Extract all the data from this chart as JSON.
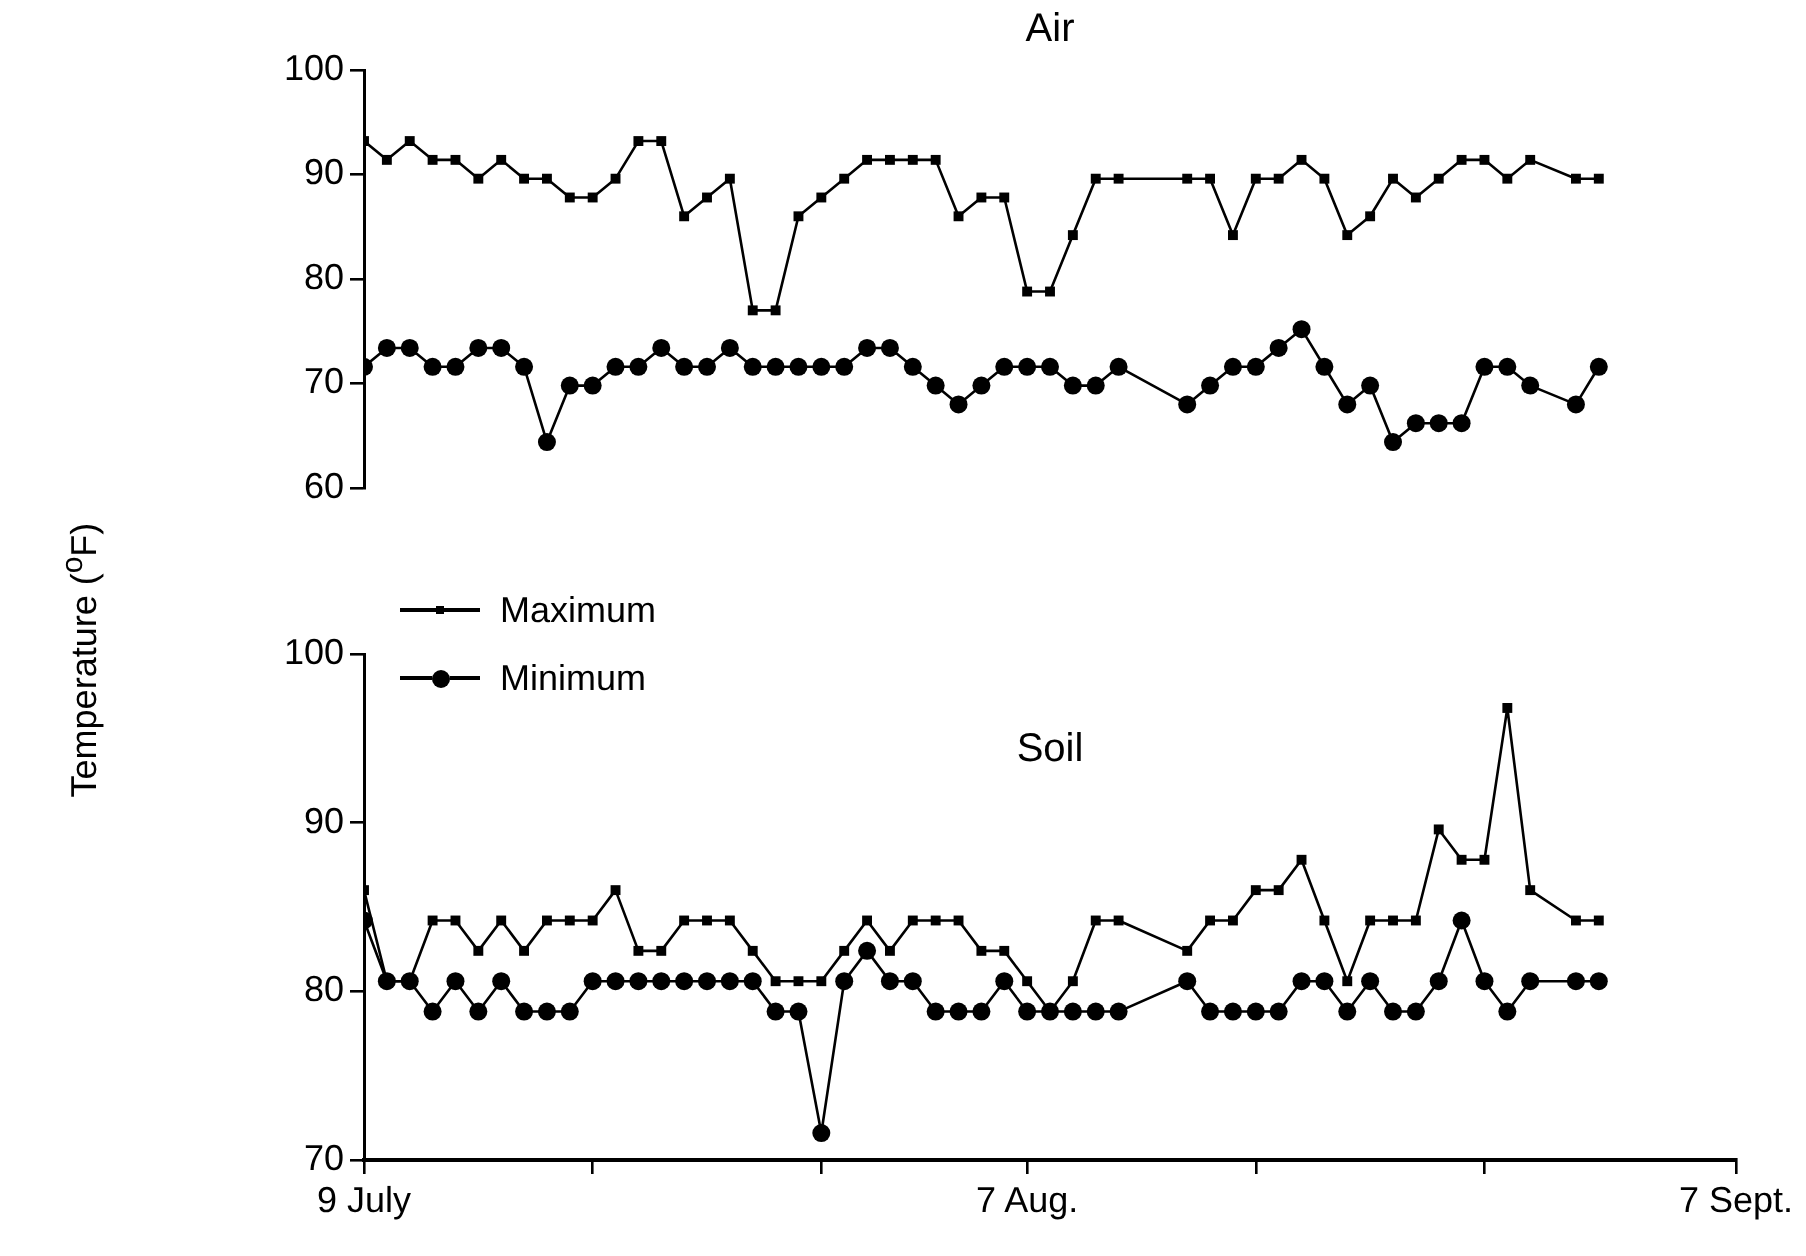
{
  "chart_data": [
    {
      "type": "line",
      "title": "Air",
      "ylabel": "Temperature ($^{o}$F)",
      "x": [
        "--07-09",
        "--07-10",
        "--07-11",
        "--07-12",
        "--07-13",
        "--07-14",
        "--07-15",
        "--07-16",
        "--07-17",
        "--07-18",
        "--07-19",
        "--07-20",
        "--07-21",
        "--07-22",
        "--07-23",
        "--07-24",
        "--07-25",
        "--07-26",
        "--07-27",
        "--07-28",
        "--07-29",
        "--07-30",
        "--07-31",
        "--08-01",
        "--08-02",
        "--08-03",
        "--08-04",
        "--08-05",
        "--08-06",
        "--08-07",
        "--08-08",
        "--08-09",
        "--08-10",
        "--08-11",
        "--08-14",
        "--08-15",
        "--08-16",
        "--08-17",
        "--08-18",
        "--08-19",
        "--08-20",
        "--08-21",
        "--08-22",
        "--08-23",
        "--08-24",
        "--08-25",
        "--08-26",
        "--08-27",
        "--08-28",
        "--08-29",
        "--08-31",
        "--09-01"
      ],
      "xlim": [
        "--07-09",
        "--09-07"
      ],
      "ylim": [
        60,
        100
      ],
      "yticks": [
        60,
        70,
        80,
        90,
        100
      ],
      "tick_labels": "y",
      "grid": false,
      "legend": "bottom left",
      "line_style": "solid",
      "series": [
        {
          "name": "Maximum",
          "color": "#000000",
          "marker": "square",
          "values": [
            93.2,
            91.4,
            93.2,
            91.4,
            91.4,
            89.6,
            91.4,
            89.6,
            89.6,
            87.8,
            87.8,
            89.6,
            93.2,
            93.2,
            86,
            87.8,
            89.6,
            77,
            77,
            86,
            87.8,
            89.6,
            91.4,
            91.4,
            91.4,
            91.4,
            86,
            87.8,
            87.8,
            78.8,
            78.8,
            84.2,
            89.6,
            89.6,
            89.6,
            89.6,
            84.2,
            89.6,
            89.6,
            91.4,
            89.6,
            84.2,
            86,
            89.6,
            87.8,
            89.6,
            91.4,
            91.4,
            89.6,
            91.4,
            89.6,
            89.6
          ]
        },
        {
          "name": "Minimum",
          "color": "#000000",
          "marker": "circle",
          "values": [
            71.6,
            73.4,
            73.4,
            71.6,
            71.6,
            73.4,
            73.4,
            71.6,
            64.4,
            69.8,
            69.8,
            71.6,
            71.6,
            73.4,
            71.6,
            71.6,
            73.4,
            71.6,
            71.6,
            71.6,
            71.6,
            71.6,
            73.4,
            73.4,
            71.6,
            69.8,
            68,
            69.8,
            71.6,
            71.6,
            71.6,
            69.8,
            69.8,
            71.6,
            68,
            69.8,
            71.6,
            71.6,
            73.4,
            75.2,
            71.6,
            68,
            69.8,
            64.4,
            66.2,
            66.2,
            66.2,
            71.6,
            71.6,
            69.8,
            68,
            71.6
          ]
        }
      ]
    },
    {
      "type": "line",
      "title": "Soil",
      "x": [
        "--07-09",
        "--07-10",
        "--07-11",
        "--07-12",
        "--07-13",
        "--07-14",
        "--07-15",
        "--07-16",
        "--07-17",
        "--07-18",
        "--07-19",
        "--07-20",
        "--07-21",
        "--07-22",
        "--07-23",
        "--07-24",
        "--07-25",
        "--07-26",
        "--07-27",
        "--07-28",
        "--07-29",
        "--07-30",
        "--07-31",
        "--08-01",
        "--08-02",
        "--08-03",
        "--08-04",
        "--08-05",
        "--08-06",
        "--08-07",
        "--08-08",
        "--08-09",
        "--08-10",
        "--08-11",
        "--08-14",
        "--08-15",
        "--08-16",
        "--08-17",
        "--08-18",
        "--08-19",
        "--08-20",
        "--08-21",
        "--08-22",
        "--08-23",
        "--08-24",
        "--08-25",
        "--08-26",
        "--08-27",
        "--08-28",
        "--08-29",
        "--08-31",
        "--09-01"
      ],
      "xlim": [
        "--07-09",
        "--09-07"
      ],
      "xticks": [
        {
          "value": "--07-09",
          "label": "9 July"
        },
        {
          "value": "--07-19",
          "label": null
        },
        {
          "value": "--07-29",
          "label": null
        },
        {
          "value": "--08-07",
          "label": "7 Aug."
        },
        {
          "value": "--08-17",
          "label": null
        },
        {
          "value": "--08-27",
          "label": null
        },
        {
          "value": "--09-07",
          "label": "7 Sept."
        }
      ],
      "ylim": [
        70,
        100
      ],
      "yticks": [
        70,
        80,
        90,
        100
      ],
      "grid": false,
      "line_style": "solid",
      "series": [
        {
          "color": "#000000",
          "marker": "square",
          "values": [
            86,
            80.6,
            80.6,
            84.2,
            84.2,
            82.4,
            84.2,
            82.4,
            84.2,
            84.2,
            84.2,
            86,
            82.4,
            82.4,
            84.2,
            84.2,
            84.2,
            82.4,
            80.6,
            80.6,
            80.6,
            82.4,
            84.2,
            82.4,
            84.2,
            84.2,
            84.2,
            82.4,
            82.4,
            80.6,
            78.8,
            80.6,
            84.2,
            84.2,
            82.4,
            84.2,
            84.2,
            86,
            86,
            87.8,
            84.2,
            80.6,
            84.2,
            84.2,
            84.2,
            89.6,
            87.8,
            87.8,
            96.8,
            86,
            84.2,
            84.2
          ]
        },
        {
          "color": "#000000",
          "marker": "circle",
          "values": [
            84.2,
            80.6,
            80.6,
            78.8,
            80.6,
            78.8,
            80.6,
            78.8,
            78.8,
            78.8,
            80.6,
            80.6,
            80.6,
            80.6,
            80.6,
            80.6,
            80.6,
            80.6,
            78.8,
            78.8,
            71.6,
            80.6,
            82.4,
            80.6,
            80.6,
            78.8,
            78.8,
            78.8,
            80.6,
            78.8,
            78.8,
            78.8,
            78.8,
            78.8,
            80.6,
            78.8,
            78.8,
            78.8,
            78.8,
            80.6,
            80.6,
            78.8,
            80.6,
            78.8,
            78.8,
            80.6,
            84.2,
            80.6,
            78.8,
            80.6,
            80.6,
            80.6
          ]
        }
      ]
    }
  ]
}
